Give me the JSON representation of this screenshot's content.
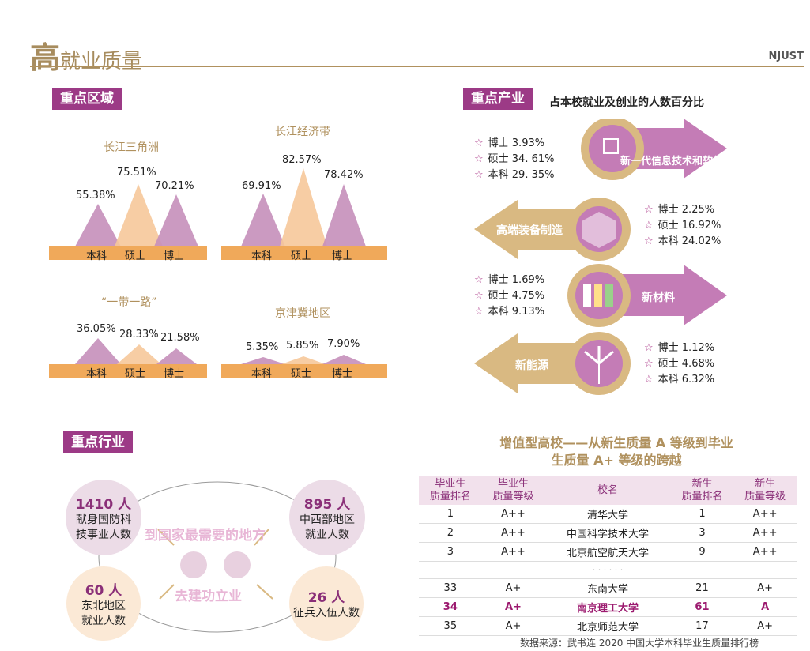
{
  "header": {
    "title_big": "高",
    "title_rest": "就业质量",
    "brand": "NJUST"
  },
  "regions": {
    "tag": "重点区域",
    "bar_labels": [
      "本科",
      "硕士",
      "博士"
    ],
    "blocks": [
      {
        "name": "长江三角洲",
        "values": [
          "55.38%",
          "75.51%",
          "70.21%"
        ]
      },
      {
        "name": "长江经济带",
        "values": [
          "69.91%",
          "82.57%",
          "78.42%"
        ]
      },
      {
        "name": "“一带一路”",
        "values": [
          "36.05%",
          "28.33%",
          "21.58%"
        ]
      },
      {
        "name": "京津冀地区",
        "values": [
          "5.35%",
          "5.85%",
          "7.90%"
        ]
      }
    ]
  },
  "industry": {
    "tag": "重点产业",
    "subtitle": "占本校就业及创业的人数百分比",
    "sectors": [
      {
        "name": "新一代信息技术和软件",
        "stats": [
          "博士 3.93%",
          "硕士 34. 61%",
          "本科 29. 35%"
        ],
        "icon": "ai-head-icon"
      },
      {
        "name": "高端装备制造",
        "stats": [
          "博士 2.25%",
          "硕士 16.92%",
          "本科 24.02%"
        ],
        "icon": "drone-icon"
      },
      {
        "name": "新材料",
        "stats": [
          "博士 1.69%",
          "硕士 4.75%",
          "本科 9.13%"
        ],
        "icon": "battery-icon"
      },
      {
        "name": "新能源",
        "stats": [
          "博士 1.12%",
          "硕士 4.68%",
          "本科 6.32%"
        ],
        "icon": "wind-turbine-icon"
      }
    ]
  },
  "trades": {
    "tag": "重点行业",
    "slogan1": "到国家最需要的地方",
    "slogan2": "去建功立业",
    "circles": [
      {
        "number": "1410 人",
        "line1": "献身国防科",
        "line2": "技事业人数"
      },
      {
        "number": "895 人",
        "line1": "中西部地区",
        "line2": "就业人数"
      },
      {
        "number": "60 人",
        "line1": "东北地区",
        "line2": "就业人数"
      },
      {
        "number": "26 人",
        "line1": "征兵入伍人数",
        "line2": ""
      }
    ]
  },
  "ranking": {
    "title1": "增值型高校——从新生质量 A 等级到毕业",
    "title2": "生质量 A+ 等级的跨越",
    "headers": [
      [
        "毕业生",
        "质量排名"
      ],
      [
        "毕业生",
        "质量等级"
      ],
      [
        "校名",
        ""
      ],
      [
        "新生",
        "质量排名"
      ],
      [
        "新生",
        "质量等级"
      ]
    ],
    "rows": [
      [
        "1",
        "A++",
        "清华大学",
        "1",
        "A++"
      ],
      [
        "2",
        "A++",
        "中国科学技术大学",
        "3",
        "A++"
      ],
      [
        "3",
        "A++",
        "北京航空航天大学",
        "9",
        "A++"
      ],
      [
        "",
        "",
        "· · · · · ·",
        "",
        ""
      ],
      [
        "33",
        "A+",
        "东南大学",
        "21",
        "A+"
      ],
      [
        "34",
        "A+",
        "南京理工大学",
        "61",
        "A"
      ],
      [
        "35",
        "A+",
        "北京师范大学",
        "17",
        "A+"
      ]
    ],
    "source": "数据来源：武书连 2020 中国大学本科毕业生质量排行榜"
  },
  "colors": {
    "accent": "#9c3a86",
    "gold": "#b0915e",
    "orange": "#f0a95a",
    "mauve": "#c58fba",
    "peach": "#f6c89a"
  }
}
